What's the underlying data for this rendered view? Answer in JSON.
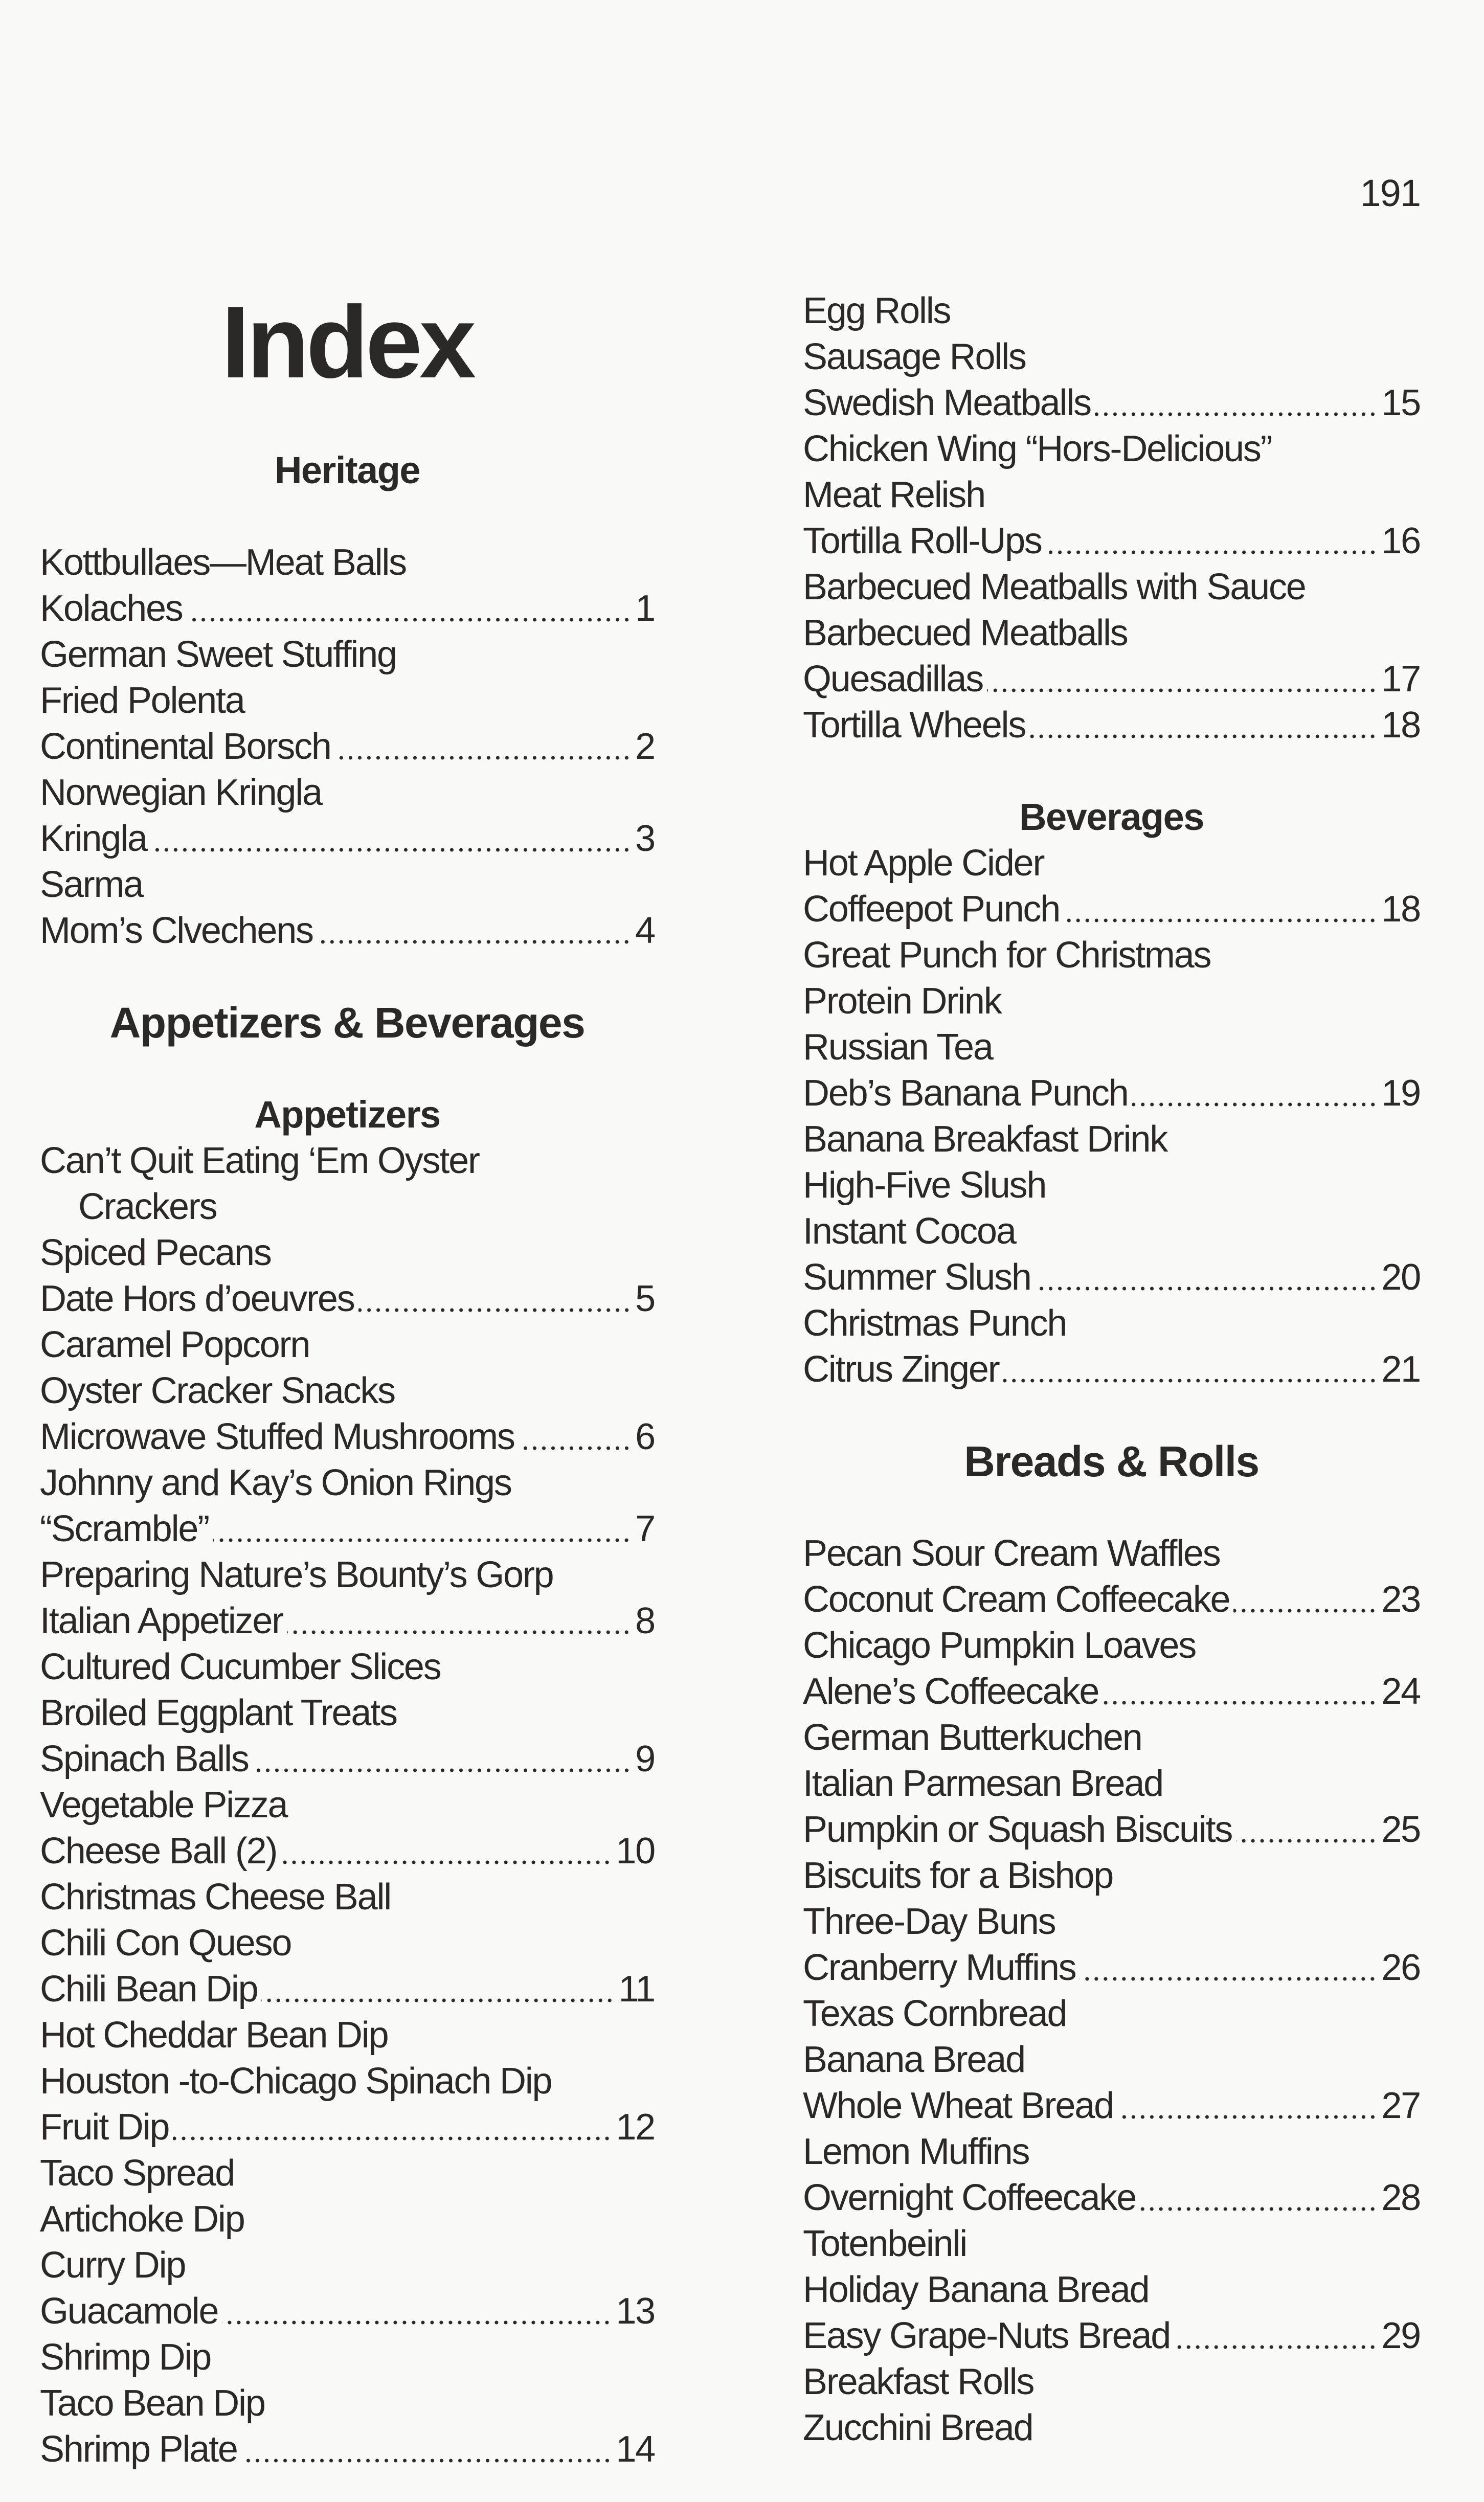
{
  "page_number": "191",
  "title": "Index",
  "colors": {
    "text": "#2b2828",
    "paper": "#f9f9f7"
  },
  "left_column": [
    {
      "type": "heading",
      "text": "Heritage",
      "style": "sub"
    },
    {
      "text": "Kottbullaes—Meat Balls"
    },
    {
      "text": "Kolaches",
      "page": "1"
    },
    {
      "text": "German Sweet Stuffing"
    },
    {
      "text": "Fried Polenta"
    },
    {
      "text": "Continental Borsch",
      "page": "2"
    },
    {
      "text": "Norwegian Kringla"
    },
    {
      "text": "Kringla",
      "page": "3"
    },
    {
      "text": "Sarma"
    },
    {
      "text": "Mom’s Clvechens",
      "page": "4"
    },
    {
      "type": "heading",
      "text": "Appetizers & Beverages",
      "style": "section"
    },
    {
      "type": "heading",
      "text": "Appetizers",
      "style": "sub-tight"
    },
    {
      "text": "Can’t Quit Eating ‘Em Oyster"
    },
    {
      "text": "Crackers",
      "indent": true
    },
    {
      "text": "Spiced Pecans"
    },
    {
      "text": "Date Hors d’oeuvres",
      "page": "5"
    },
    {
      "text": "Caramel Popcorn"
    },
    {
      "text": "Oyster Cracker Snacks"
    },
    {
      "text": "Microwave Stuffed Mushrooms",
      "page": "6"
    },
    {
      "text": "Johnny and Kay’s Onion Rings"
    },
    {
      "text": "“Scramble”",
      "page": "7"
    },
    {
      "text": "Preparing Nature’s Bounty’s Gorp"
    },
    {
      "text": "Italian Appetizer",
      "page": "8"
    },
    {
      "text": "Cultured Cucumber Slices"
    },
    {
      "text": "Broiled Eggplant Treats"
    },
    {
      "text": "Spinach Balls",
      "page": "9"
    },
    {
      "text": "Vegetable Pizza"
    },
    {
      "text": "Cheese Ball (2)",
      "page": "10"
    },
    {
      "text": "Christmas Cheese Ball"
    },
    {
      "text": "Chili Con Queso"
    },
    {
      "text": "Chili Bean Dip",
      "page": "11"
    },
    {
      "text": "Hot Cheddar Bean Dip"
    },
    {
      "text": "Houston -to-Chicago Spinach Dip"
    },
    {
      "text": "Fruit Dip",
      "page": "12"
    },
    {
      "text": "Taco Spread"
    },
    {
      "text": "Artichoke Dip"
    },
    {
      "text": "Curry Dip"
    },
    {
      "text": "Guacamole",
      "page": "13"
    },
    {
      "text": "Shrimp Dip"
    },
    {
      "text": "Taco Bean Dip"
    },
    {
      "text": "Shrimp Plate",
      "page": "14"
    }
  ],
  "right_column": [
    {
      "text": "Egg Rolls"
    },
    {
      "text": "Sausage Rolls"
    },
    {
      "text": "Swedish Meatballs",
      "page": "15"
    },
    {
      "text": "Chicken Wing “Hors-Delicious”"
    },
    {
      "text": "Meat Relish"
    },
    {
      "text": "Tortilla Roll-Ups",
      "page": "16"
    },
    {
      "text": "Barbecued Meatballs with Sauce"
    },
    {
      "text": "Barbecued Meatballs"
    },
    {
      "text": "Quesadillas",
      "page": "17"
    },
    {
      "text": "Tortilla Wheels",
      "page": "18"
    },
    {
      "type": "heading",
      "text": "Beverages",
      "style": "sub-after"
    },
    {
      "text": "Hot Apple Cider"
    },
    {
      "text": "Coffeepot Punch",
      "page": "18"
    },
    {
      "text": "Great Punch for Christmas"
    },
    {
      "text": "Protein Drink"
    },
    {
      "text": "Russian Tea"
    },
    {
      "text": "Deb’s Banana Punch",
      "page": "19"
    },
    {
      "text": "Banana Breakfast Drink"
    },
    {
      "text": "High-Five Slush"
    },
    {
      "text": "Instant Cocoa"
    },
    {
      "text": "Summer Slush",
      "page": "20"
    },
    {
      "text": "Christmas Punch"
    },
    {
      "text": "Citrus Zinger",
      "page": "21"
    },
    {
      "type": "heading",
      "text": "Breads & Rolls",
      "style": "section"
    },
    {
      "text": "Pecan Sour Cream Waffles"
    },
    {
      "text": "Coconut Cream Coffeecake",
      "page": "23"
    },
    {
      "text": "Chicago Pumpkin Loaves"
    },
    {
      "text": "Alene’s Coffeecake",
      "page": "24"
    },
    {
      "text": "German Butterkuchen"
    },
    {
      "text": "Italian Parmesan Bread"
    },
    {
      "text": "Pumpkin or Squash Biscuits",
      "page": "25"
    },
    {
      "text": "Biscuits for a Bishop"
    },
    {
      "text": "Three-Day Buns"
    },
    {
      "text": "Cranberry Muffins",
      "page": "26"
    },
    {
      "text": "Texas Cornbread"
    },
    {
      "text": "Banana Bread"
    },
    {
      "text": "Whole Wheat Bread",
      "page": "27"
    },
    {
      "text": "Lemon Muffins"
    },
    {
      "text": "Overnight Coffeecake",
      "page": "28"
    },
    {
      "text": "Totenbeinli"
    },
    {
      "text": "Holiday Banana Bread"
    },
    {
      "text": "Easy Grape-Nuts Bread",
      "page": "29"
    },
    {
      "text": "Breakfast Rolls"
    },
    {
      "text": "Zucchini Bread"
    }
  ]
}
